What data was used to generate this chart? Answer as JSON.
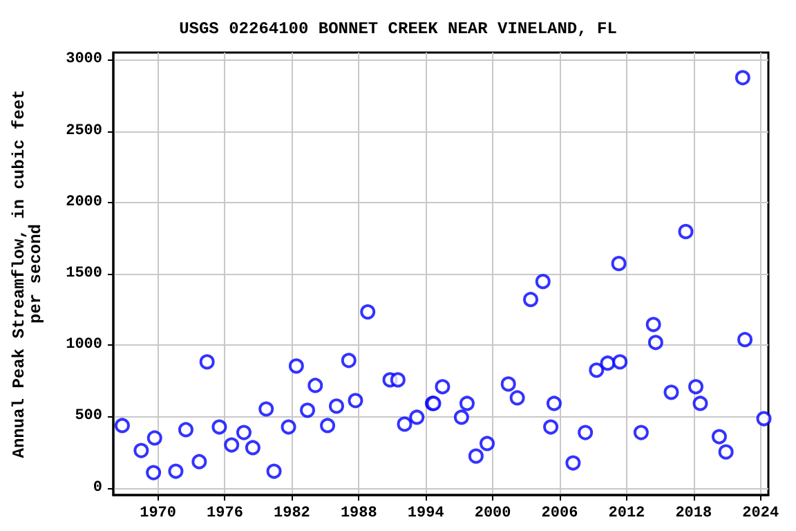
{
  "chart_data": {
    "type": "scatter",
    "title": "USGS 02264100 BONNET CREEK NEAR VINELAND, FL",
    "ylabel": "Annual Peak Streamflow, in cubic feet\nper second",
    "x": [
      1966.8,
      1968.5,
      1969.6,
      1969.7,
      1971.6,
      1972.5,
      1973.7,
      1974.4,
      1975.5,
      1976.6,
      1977.7,
      1978.5,
      1979.7,
      1980.4,
      1981.7,
      1982.4,
      1983.4,
      1984.1,
      1985.2,
      1986.0,
      1987.1,
      1987.7,
      1988.8,
      1990.8,
      1991.5,
      1992.1,
      1993.2,
      1994.6,
      1994.7,
      1995.5,
      1997.2,
      1997.7,
      1998.5,
      1999.5,
      2001.4,
      2002.2,
      2003.4,
      2004.5,
      2005.2,
      2005.5,
      2007.2,
      2008.3,
      2009.3,
      2010.3,
      2011.3,
      2011.4,
      2013.3,
      2014.4,
      2014.6,
      2016.0,
      2017.3,
      2018.2,
      2018.6,
      2020.3,
      2020.9,
      2022.4,
      2022.6,
      2024.3
    ],
    "series": [
      {
        "color": "#0000ff",
        "values": [
          437,
          262,
          107,
          350,
          117,
          408,
          184,
          883,
          427,
          301,
          388,
          282,
          553,
          117,
          427,
          854,
          544,
          718,
          437,
          573,
          893,
          612,
          1233,
          757,
          757,
          447,
          495,
          592,
          592,
          709,
          495,
          592,
          223,
          311,
          728,
          631,
          1320,
          1446,
          427,
          592,
          175,
          388,
          825,
          874,
          1572,
          883,
          388,
          1145,
          1019,
          670,
          1796,
          709,
          592,
          359,
          252,
          2874,
          1039,
          485
        ]
      }
    ],
    "xlim": [
      1966,
      2024.7
    ],
    "xticks": [
      1970,
      1976,
      1982,
      1988,
      1994,
      2000,
      2006,
      2012,
      2018,
      2024
    ],
    "ylim": [
      -50,
      3050
    ],
    "yticks": [
      0,
      500,
      1000,
      1500,
      2000,
      2500,
      3000
    ],
    "grid": true,
    "marker": "circle"
  }
}
